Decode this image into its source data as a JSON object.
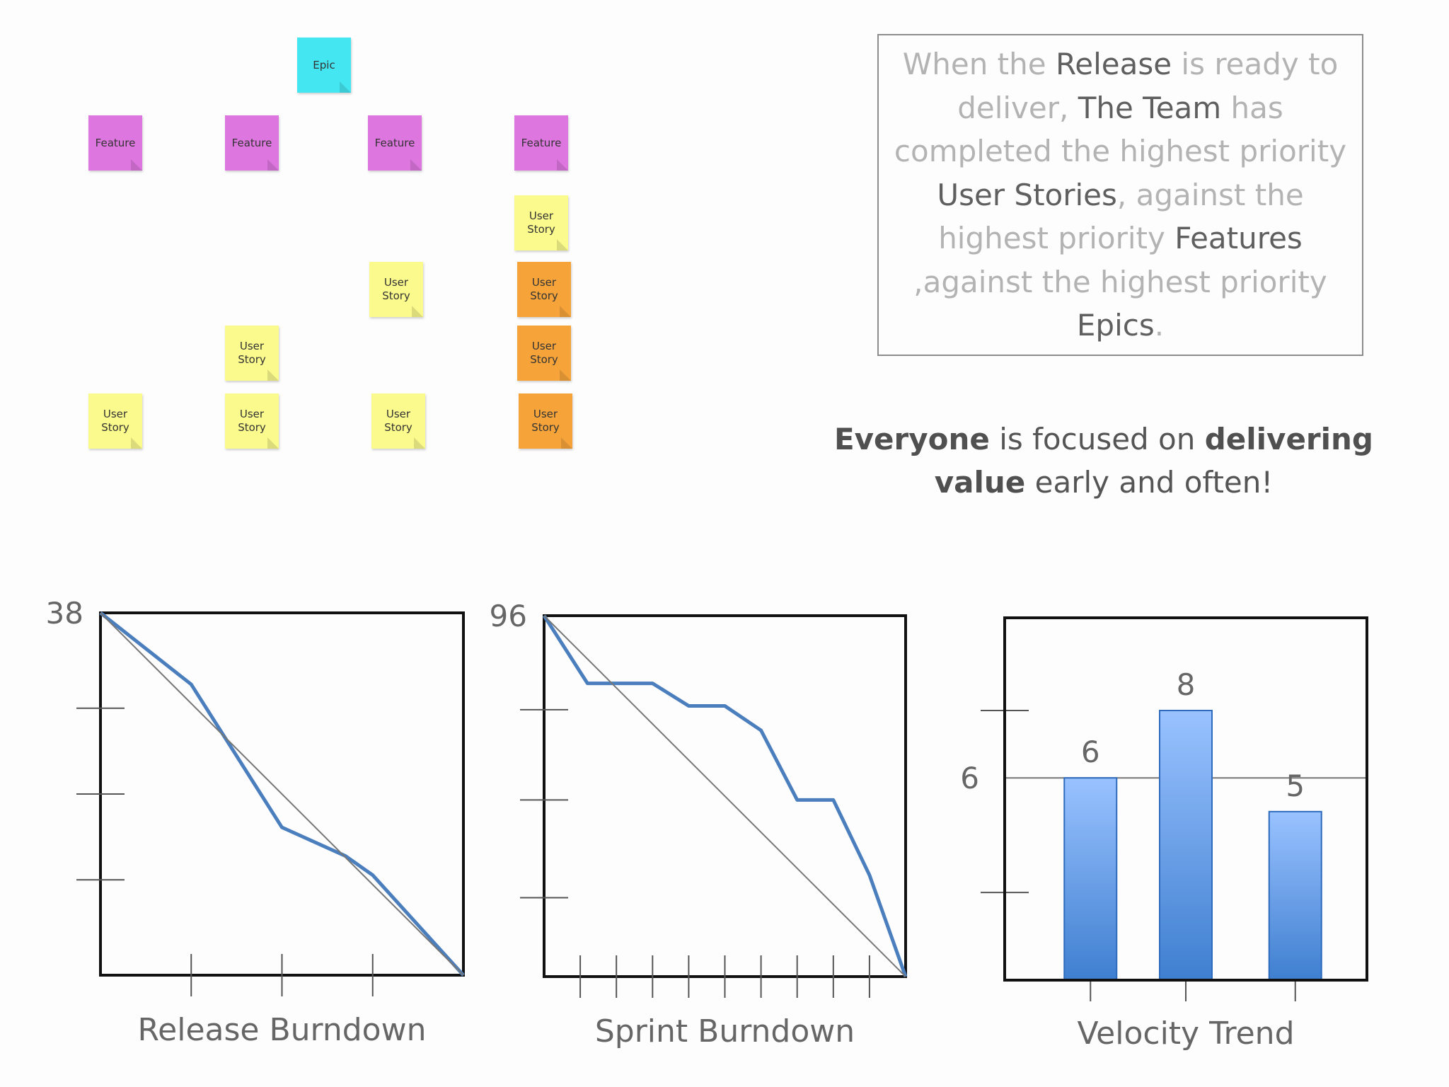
{
  "board": {
    "epic_label": "Epic",
    "feature_label": "Feature",
    "story_label": "User Story"
  },
  "textbox": {
    "segments": [
      {
        "text": "When the ",
        "hl": false
      },
      {
        "text": "Release",
        "hl": true
      },
      {
        "text": " is ready to deliver, ",
        "hl": false
      },
      {
        "text": "The Team",
        "hl": true
      },
      {
        "text": " has completed the highest priority ",
        "hl": false
      },
      {
        "text": "User Stories",
        "hl": true
      },
      {
        "text": ", against the highest priority ",
        "hl": false
      },
      {
        "text": "Features",
        "hl": true
      },
      {
        "text": " ,against the highest priority ",
        "hl": false
      },
      {
        "text": "Epics",
        "hl": true
      },
      {
        "text": ".",
        "hl": false
      }
    ]
  },
  "slogan": {
    "part1": "Everyone",
    "part2": " is focused on ",
    "part3": "delivering value",
    "part4": " early and often!"
  },
  "colors": {
    "line": "#4a7ebd",
    "ideal": "#777777",
    "bar_top": "#99c2ff",
    "bar_bottom": "#3f7fd0",
    "epic": "#44e6f2",
    "feature": "#de76e0",
    "story": "#fbfa8c",
    "story_done": "#f6a43a"
  },
  "chart_data": [
    {
      "type": "line",
      "title": "Release Burndown",
      "xlabel": "Release Burndown",
      "ylabel": "",
      "ymax_label": "38",
      "ylim": [
        0,
        38
      ],
      "xlim": [
        0,
        4
      ],
      "xticks": [
        1,
        2,
        3
      ],
      "yticks": [
        10,
        19,
        28
      ],
      "series": [
        {
          "values": [
            [
              0,
              38
            ],
            [
              1,
              30.5
            ],
            [
              1.5,
              23
            ],
            [
              2,
              15.5
            ],
            [
              2.7,
              12.5
            ],
            [
              3,
              10.5
            ],
            [
              4,
              0
            ]
          ]
        },
        {
          "values": [
            [
              0,
              38
            ],
            [
              4,
              0
            ]
          ],
          "style": "ideal"
        }
      ]
    },
    {
      "type": "line",
      "title": "Sprint Burndown",
      "xlabel": "Sprint Burndown",
      "ylabel": "",
      "ymax_label": "96",
      "ylim": [
        0,
        96
      ],
      "xlim": [
        0,
        10
      ],
      "xticks": [
        1,
        2,
        3,
        4,
        5,
        6,
        7,
        8,
        9
      ],
      "yticks": [
        21,
        47,
        71
      ],
      "series": [
        {
          "values": [
            [
              0,
              96
            ],
            [
              1.2,
              78
            ],
            [
              3,
              78
            ],
            [
              4,
              72
            ],
            [
              5,
              72
            ],
            [
              6,
              65.5
            ],
            [
              7,
              47
            ],
            [
              8,
              47
            ],
            [
              9,
              27
            ],
            [
              10,
              0
            ]
          ]
        },
        {
          "values": [
            [
              0,
              96
            ],
            [
              10,
              0
            ]
          ],
          "style": "ideal"
        }
      ]
    },
    {
      "type": "bar",
      "title": "Velocity Trend",
      "xlabel": "Velocity Trend",
      "ylabel": "",
      "reference_label": "6",
      "reference_value": 6,
      "ylim": [
        0,
        10.75
      ],
      "yticks": [
        2.6,
        8
      ],
      "categories": [
        "",
        "",
        ""
      ],
      "values": [
        6,
        8,
        5
      ],
      "data_labels": [
        "6",
        "8",
        "5"
      ]
    }
  ]
}
